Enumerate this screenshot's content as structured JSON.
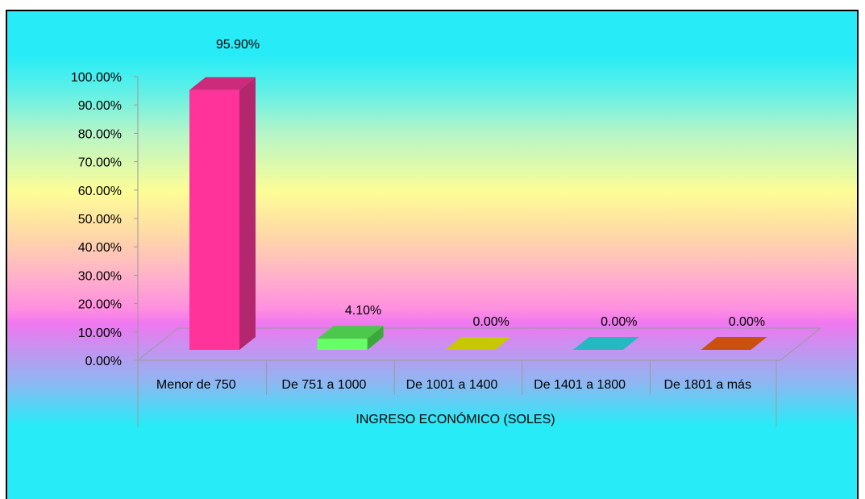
{
  "chart_data": {
    "type": "bar",
    "title": "",
    "xlabel": "INGRESO ECONÓMICO (SOLES)",
    "ylabel": "",
    "ylim": [
      0,
      100
    ],
    "yticks": [
      "0.00%",
      "10.00%",
      "20.00%",
      "30.00%",
      "40.00%",
      "50.00%",
      "60.00%",
      "70.00%",
      "80.00%",
      "90.00%",
      "100.00%"
    ],
    "categories": [
      "Menor de 750",
      "De 751  a 1000",
      "De 1001 a 1400",
      "De 1401  a 1800",
      "De 1801 a más"
    ],
    "values": [
      95.9,
      4.1,
      0.0,
      0.0,
      0.0
    ],
    "data_labels": [
      "95.90%",
      "4.10%",
      "0.00%",
      "0.00%",
      "0.00%"
    ],
    "colors": [
      {
        "front": "#ff3399",
        "side": "#b3276e",
        "top": "#cc2a7a"
      },
      {
        "front": "#66ff66",
        "side": "#3aa83a",
        "top": "#4cc94c"
      },
      {
        "front": "#d4d400",
        "side": "#a3a300",
        "top": "#c8c800"
      },
      {
        "front": "#22c4cc",
        "side": "#1b9aa0",
        "top": "#25b8c0"
      },
      {
        "front": "#e05a10",
        "side": "#a8440c",
        "top": "#c9500e"
      }
    ],
    "grid": false,
    "legend": "none"
  }
}
